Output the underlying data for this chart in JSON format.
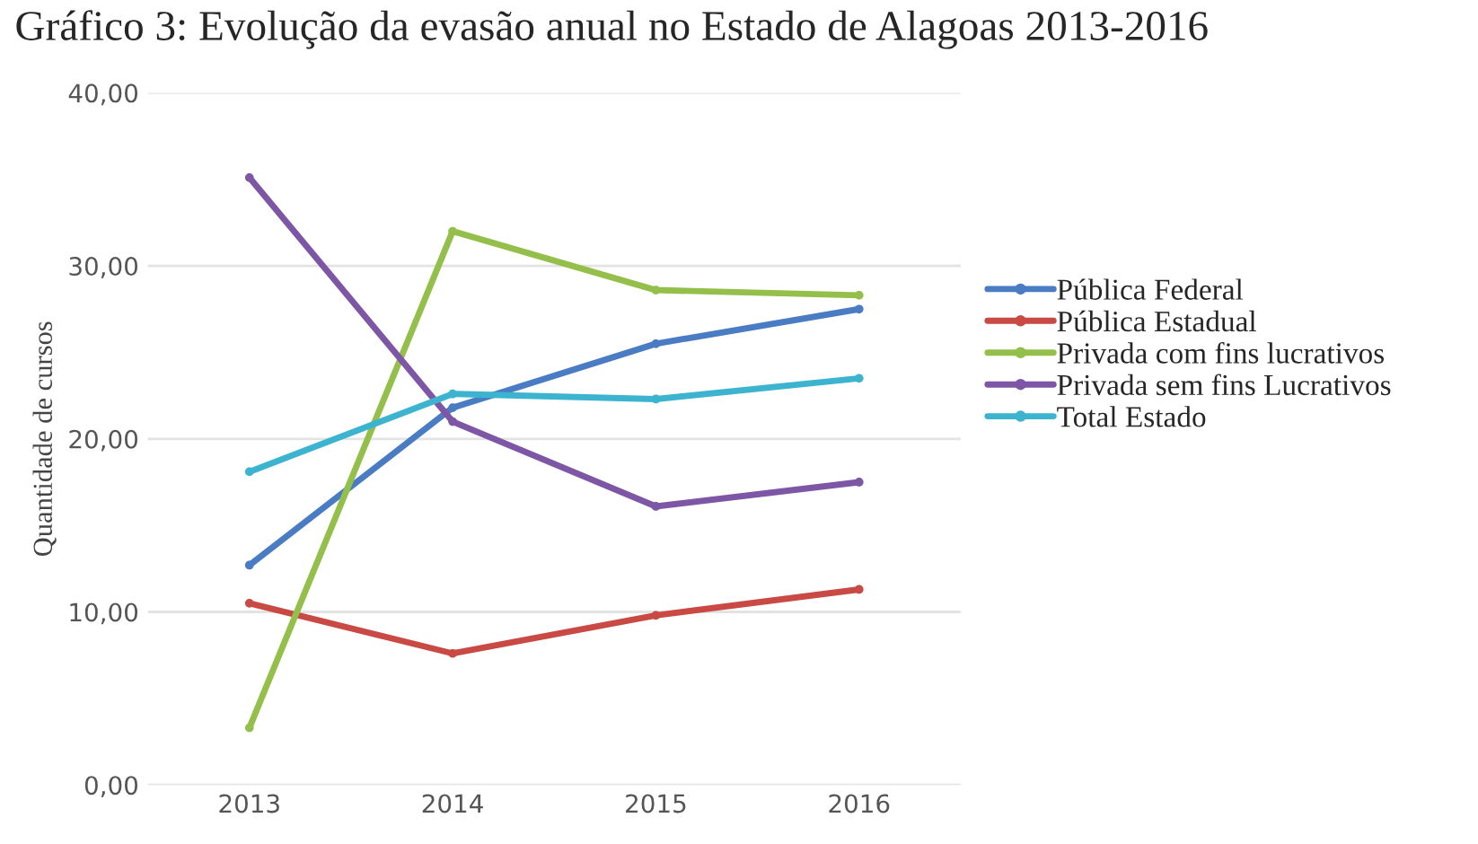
{
  "chart_data": {
    "type": "line",
    "title": "Gráfico 3: Evolução da evasão anual no Estado de Alagoas 2013-2016",
    "ylabel": "Quantidade de cursos",
    "categories": [
      "2013",
      "2014",
      "2015",
      "2016"
    ],
    "series": [
      {
        "name": "Pública Federal",
        "color": "#4a7cc4",
        "values": [
          12.7,
          21.8,
          25.5,
          27.5
        ]
      },
      {
        "name": "Pública Estadual",
        "color": "#c94a44",
        "values": [
          10.5,
          7.6,
          9.8,
          11.3
        ]
      },
      {
        "name": "Privada com fins lucrativos",
        "color": "#93bf4a",
        "values": [
          3.3,
          32.0,
          28.6,
          28.3
        ]
      },
      {
        "name": "Privada sem fins Lucrativos",
        "color": "#7e56a6",
        "values": [
          35.1,
          21.0,
          16.1,
          17.5
        ]
      },
      {
        "name": "Total Estado",
        "color": "#3db4cf",
        "values": [
          18.1,
          22.6,
          22.3,
          23.5
        ]
      }
    ],
    "ylim": [
      0,
      40
    ],
    "yticks": [
      {
        "value": 0,
        "label": "0,00"
      },
      {
        "value": 10,
        "label": "10,00"
      },
      {
        "value": 20,
        "label": "20,00"
      },
      {
        "value": 30,
        "label": "30,00"
      },
      {
        "value": 40,
        "label": "40,00"
      }
    ],
    "grid": "y",
    "legend": "right",
    "marker": "circle",
    "line_style": "solid"
  }
}
